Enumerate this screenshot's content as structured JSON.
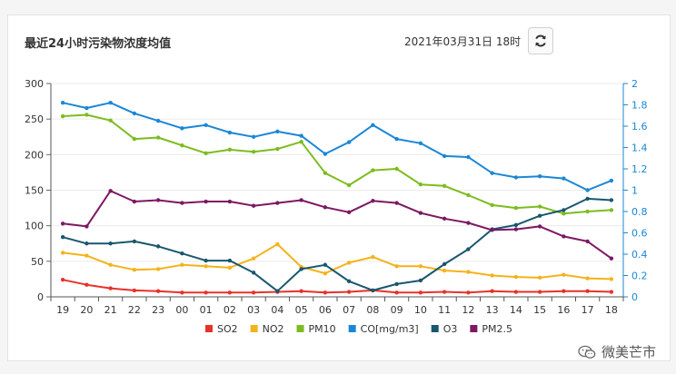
{
  "header": {
    "title": "最近24小时污染物浓度均值",
    "datetime": "2021年03月31日 18时"
  },
  "watermark": {
    "text": "微美芒市"
  },
  "chart_data": {
    "type": "line",
    "categories": [
      "19",
      "20",
      "21",
      "22",
      "23",
      "00",
      "01",
      "02",
      "03",
      "04",
      "05",
      "06",
      "07",
      "08",
      "09",
      "10",
      "11",
      "12",
      "13",
      "14",
      "15",
      "16",
      "17",
      "18"
    ],
    "y_left": {
      "min": 0,
      "max": 300,
      "ticks": [
        0,
        50,
        100,
        150,
        200,
        250,
        300
      ]
    },
    "y_right": {
      "min": 0,
      "max": 2,
      "ticks": [
        "0",
        "0.2",
        "0.4",
        "0.6",
        "0.8",
        "1",
        "1.2",
        "1.4",
        "1.6",
        "1.8",
        "2"
      ]
    },
    "series": [
      {
        "name": "SO2",
        "color": "#e8312a",
        "axis": "left",
        "values": [
          24,
          17,
          12,
          9,
          8,
          6,
          6,
          6,
          6,
          7,
          8,
          6,
          7,
          9,
          6,
          6,
          7,
          6,
          8,
          7,
          7,
          8,
          8,
          7
        ]
      },
      {
        "name": "NO2",
        "color": "#f5b21b",
        "axis": "left",
        "values": [
          62,
          58,
          45,
          38,
          39,
          45,
          43,
          41,
          54,
          74,
          42,
          33,
          48,
          56,
          43,
          43,
          37,
          35,
          30,
          28,
          27,
          31,
          26,
          25
        ]
      },
      {
        "name": "PM10",
        "color": "#7cbc1e",
        "axis": "left",
        "values": [
          254,
          256,
          248,
          222,
          224,
          213,
          202,
          207,
          204,
          208,
          218,
          174,
          157,
          178,
          180,
          158,
          156,
          143,
          129,
          125,
          127,
          117,
          120,
          122
        ]
      },
      {
        "name": "CO[mg/m3]",
        "color": "#1a87d6",
        "axis": "right",
        "values": [
          1.82,
          1.77,
          1.82,
          1.72,
          1.65,
          1.58,
          1.61,
          1.54,
          1.5,
          1.55,
          1.51,
          1.34,
          1.45,
          1.61,
          1.48,
          1.44,
          1.32,
          1.31,
          1.16,
          1.12,
          1.13,
          1.11,
          1.0,
          1.09
        ]
      },
      {
        "name": "O3",
        "color": "#18576e",
        "axis": "left",
        "values": [
          84,
          75,
          75,
          78,
          71,
          61,
          51,
          51,
          34,
          8,
          39,
          45,
          22,
          9,
          18,
          23,
          46,
          67,
          95,
          101,
          114,
          122,
          138,
          136
        ]
      },
      {
        "name": "PM2.5",
        "color": "#7d1863",
        "axis": "left",
        "values": [
          103,
          99,
          149,
          134,
          136,
          132,
          134,
          134,
          128,
          132,
          136,
          126,
          119,
          135,
          132,
          118,
          110,
          104,
          94,
          95,
          99,
          85,
          78,
          54
        ]
      }
    ]
  }
}
